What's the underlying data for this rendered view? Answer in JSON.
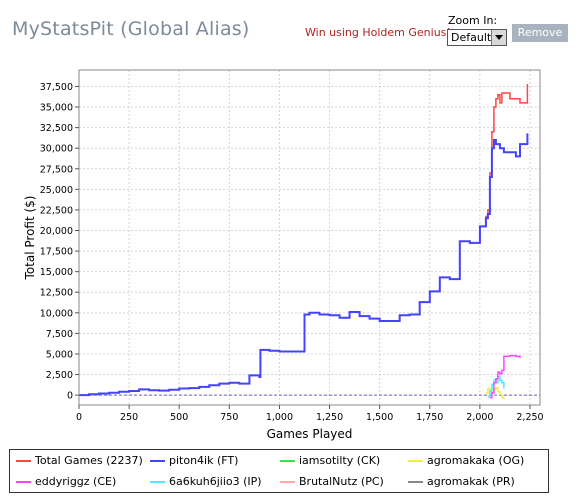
{
  "header": {
    "title": "MyStatsPit (Global Alias)",
    "promo_link": "Win using Holdem Genius!",
    "zoom_label": "Zoom In:",
    "zoom_value": "Default",
    "remove_label": "Remove"
  },
  "chart_data": {
    "type": "line",
    "xlabel": "Games Played",
    "ylabel": "Total Profit ($)",
    "xlim": [
      0,
      2300
    ],
    "ylim": [
      -1200,
      39500
    ],
    "x_ticks": [
      0,
      250,
      500,
      750,
      1000,
      1250,
      1500,
      1750,
      2000,
      2250
    ],
    "x_tick_labels": [
      "0",
      "250",
      "500",
      "750",
      "1,000",
      "1,250",
      "1,500",
      "1,750",
      "2,000",
      "2,250"
    ],
    "y_ticks": [
      0,
      2500,
      5000,
      7500,
      10000,
      12500,
      15000,
      17500,
      20000,
      22500,
      25000,
      27500,
      30000,
      32500,
      35000,
      37500
    ],
    "y_tick_labels": [
      "0",
      "2,500",
      "5,000",
      "7,500",
      "10,000",
      "12,500",
      "15,000",
      "17,500",
      "20,000",
      "22,500",
      "25,000",
      "27,500",
      "30,000",
      "32,500",
      "35,000",
      "37,500"
    ],
    "grid": true,
    "legend_position": "bottom",
    "series": [
      {
        "name": "Total Games (2237)",
        "color": "#ff4444",
        "x": [
          0,
          50,
          100,
          150,
          200,
          250,
          300,
          350,
          400,
          450,
          500,
          550,
          600,
          650,
          700,
          750,
          800,
          850,
          900,
          905,
          950,
          1000,
          1050,
          1100,
          1120,
          1125,
          1150,
          1200,
          1250,
          1300,
          1350,
          1400,
          1450,
          1500,
          1550,
          1600,
          1650,
          1700,
          1750,
          1800,
          1850,
          1900,
          1950,
          2000,
          2030,
          2040,
          2050,
          2060,
          2070,
          2080,
          2090,
          2100,
          2110,
          2150,
          2200,
          2237
        ],
        "y": [
          0,
          100,
          200,
          300,
          400,
          500,
          700,
          600,
          550,
          650,
          800,
          850,
          1000,
          1200,
          1400,
          1500,
          1400,
          2400,
          2200,
          5500,
          5400,
          5300,
          5300,
          5300,
          5300,
          9800,
          10000,
          9800,
          9700,
          9400,
          10100,
          9600,
          9300,
          9000,
          9000,
          9700,
          9800,
          11300,
          12600,
          14300,
          14100,
          18700,
          18500,
          20500,
          21700,
          22500,
          27000,
          32000,
          35000,
          36000,
          36500,
          35500,
          36700,
          36000,
          35500,
          37800
        ]
      },
      {
        "name": "piton4ik (FT)",
        "color": "#4444ff",
        "x": [
          0,
          50,
          100,
          150,
          200,
          250,
          300,
          350,
          400,
          450,
          500,
          550,
          600,
          650,
          700,
          750,
          800,
          850,
          900,
          905,
          950,
          1000,
          1050,
          1100,
          1120,
          1125,
          1150,
          1200,
          1250,
          1300,
          1350,
          1400,
          1450,
          1500,
          1550,
          1600,
          1650,
          1700,
          1750,
          1800,
          1850,
          1900,
          1950,
          2000,
          2030,
          2040,
          2050,
          2060,
          2070,
          2080,
          2100,
          2120,
          2150,
          2180,
          2200,
          2237
        ],
        "y": [
          0,
          100,
          200,
          300,
          400,
          500,
          700,
          600,
          550,
          650,
          800,
          850,
          1000,
          1200,
          1400,
          1500,
          1400,
          2400,
          2200,
          5500,
          5400,
          5300,
          5300,
          5300,
          5300,
          9800,
          10000,
          9800,
          9700,
          9400,
          10100,
          9600,
          9300,
          9000,
          9000,
          9700,
          9800,
          11300,
          12600,
          14300,
          14100,
          18700,
          18500,
          20500,
          21500,
          22000,
          26500,
          30000,
          31000,
          30500,
          30000,
          29500,
          29500,
          29000,
          30500,
          31800
        ]
      },
      {
        "name": "iamsotilty (CK)",
        "color": "#44dd44",
        "x": [],
        "y": []
      },
      {
        "name": "agromakaka (OG)",
        "color": "#eeee44",
        "x": [
          2030,
          2040,
          2050,
          2060,
          2070,
          2080,
          2090,
          2100,
          2110,
          2120
        ],
        "y": [
          300,
          800,
          600,
          200,
          700,
          900,
          400,
          100,
          -300,
          -500
        ]
      },
      {
        "name": "eddyriggz (CE)",
        "color": "#ff44ff",
        "x": [
          2050,
          2060,
          2070,
          2080,
          2090,
          2100,
          2110,
          2120,
          2150,
          2180,
          2200
        ],
        "y": [
          -300,
          300,
          1500,
          2000,
          2800,
          2600,
          3000,
          4700,
          4800,
          4700,
          4500
        ]
      },
      {
        "name": "6a6kuh6jiio3 (IP)",
        "color": "#44eeff",
        "x": [
          2040,
          2050,
          2060,
          2070,
          2080,
          2090,
          2100,
          2110,
          2120
        ],
        "y": [
          -200,
          500,
          1300,
          1800,
          1500,
          2300,
          1800,
          1500,
          800
        ]
      },
      {
        "name": "BrutalNutz (PC)",
        "color": "#ffaaaa",
        "x": [],
        "y": []
      },
      {
        "name": "agromakak (PR)",
        "color": "#888888",
        "x": [],
        "y": []
      }
    ]
  }
}
